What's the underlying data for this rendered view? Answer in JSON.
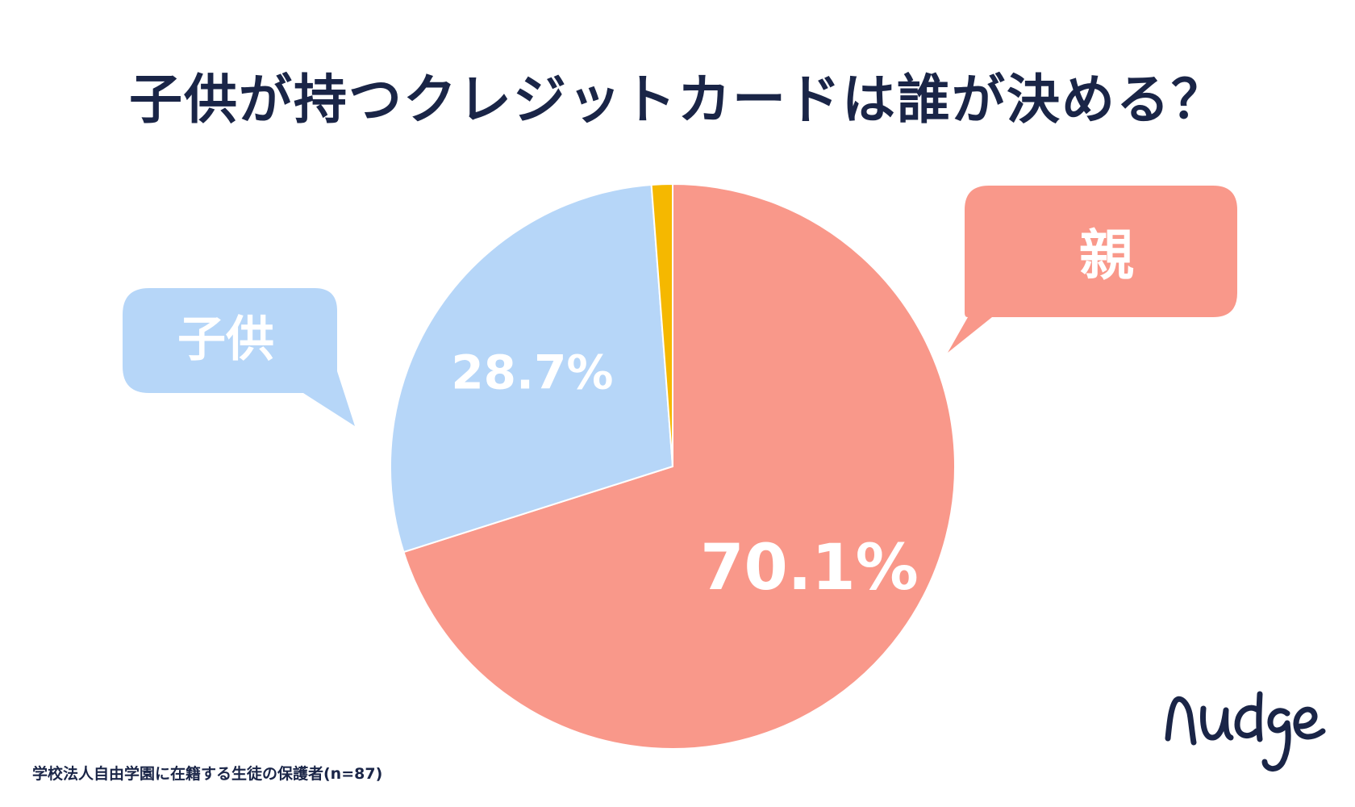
{
  "title": "子供が持つクレジットカードは誰が決める？",
  "chart_data": {
    "type": "pie",
    "slices": [
      {
        "label": "親",
        "value": 70.1,
        "display": "70.1%",
        "color": "#f9988a"
      },
      {
        "label": "子供",
        "value": 28.7,
        "display": "28.7%",
        "color": "#b6d6f8"
      },
      {
        "label": "",
        "value": 1.2,
        "display": "",
        "color": "#f5b800"
      }
    ],
    "start_angle_deg": 0,
    "direction": "clockwise"
  },
  "source_note": "学校法人自由学園に在籍する生徒の保護者(n=87)",
  "logo_text": "nudge",
  "colors": {
    "title": "#1a2547",
    "parent": "#f9988a",
    "child": "#b6d6f8",
    "other": "#f5b800",
    "label_text": "#ffffff"
  }
}
